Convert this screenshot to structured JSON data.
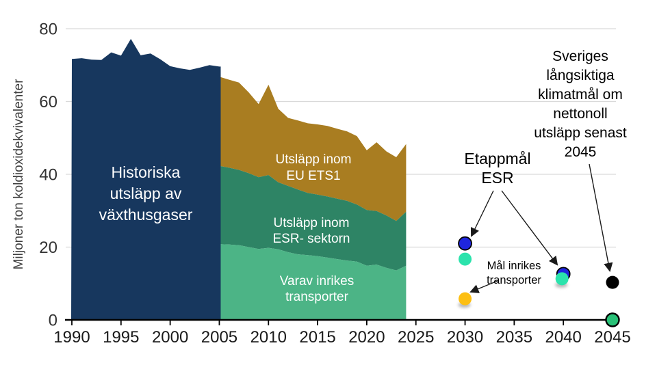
{
  "page": {
    "background": "#ffffff"
  },
  "chart_data": {
    "type": "area+scatter",
    "ylabel": "Miljoner ton koldioxidekvivalenter",
    "ylim": [
      0,
      80
    ],
    "y_ticks": [
      0,
      20,
      40,
      60,
      80
    ],
    "x_ticks": [
      1990,
      1995,
      2000,
      2005,
      2010,
      2015,
      2020,
      2025,
      2030,
      2035,
      2040,
      2045
    ],
    "grid": "horizontal",
    "colors": {
      "historical": "#17375e",
      "eu_ets1": "#a97d21",
      "esr": "#2e8465",
      "transport": "#4cb486",
      "gridline": "#d9d9d9",
      "axis": "#000000",
      "dot_blue": "#1f25dd",
      "dot_teal": "#2be3ac",
      "dot_yellow": "#fdbf12",
      "dot_black": "#000000",
      "dot_green": "#29c177"
    },
    "historical": {
      "years": [
        1990,
        1991,
        1992,
        1993,
        1994,
        1995,
        1996,
        1997,
        1998,
        1999,
        2000,
        2001,
        2002,
        2003,
        2004,
        2005
      ],
      "values": [
        71.7,
        71.9,
        71.5,
        71.4,
        73.5,
        72.6,
        77.2,
        72.7,
        73.2,
        71.6,
        69.7,
        69.1,
        68.7,
        69.3,
        70.0,
        69.6
      ]
    },
    "stacked": {
      "years": [
        2005,
        2006,
        2007,
        2008,
        2009,
        2010,
        2011,
        2012,
        2013,
        2014,
        2015,
        2016,
        2017,
        2018,
        2019,
        2020,
        2021,
        2022,
        2023,
        2024
      ],
      "total_eu_ets1": [
        66.8,
        66.0,
        65.2,
        62.5,
        59.3,
        64.6,
        58.0,
        55.5,
        54.8,
        54.0,
        53.7,
        53.3,
        52.5,
        51.8,
        50.5,
        46.6,
        48.8,
        46.3,
        44.7,
        48.3
      ],
      "esr": [
        42.3,
        41.8,
        41.2,
        40.3,
        39.2,
        39.8,
        37.8,
        36.8,
        35.8,
        34.9,
        34.4,
        33.9,
        33.3,
        32.7,
        31.7,
        30.2,
        29.9,
        28.7,
        27.2,
        29.7
      ],
      "inrikes_transporter": [
        20.8,
        20.7,
        20.5,
        20.0,
        19.5,
        19.8,
        19.4,
        18.6,
        18.0,
        17.8,
        17.5,
        17.1,
        16.7,
        16.3,
        16.0,
        14.9,
        15.2,
        14.3,
        13.6,
        14.9
      ]
    },
    "area_labels": {
      "historical": [
        "Historiska",
        "utsläpp av",
        "växthusgaser"
      ],
      "eu_ets1": [
        "Utsläpp inom",
        "EU ETS1"
      ],
      "esr": [
        "Utsläpp inom",
        "ESR- sektorn"
      ],
      "transport": [
        "Varav inrikes",
        "transporter"
      ]
    },
    "targets": [
      {
        "name": "etappmal-esr-2030",
        "year": 2030,
        "value": 21.0,
        "color": "#1f25dd",
        "stroke": "#000000",
        "stroke_width": 1.8
      },
      {
        "name": "etappmal-2030-teal",
        "year": 2030,
        "value": 16.7,
        "color": "#2be3ac"
      },
      {
        "name": "mal-inrikes-transporter-2030",
        "year": 2030,
        "value": 5.8,
        "color": "#fdbf12",
        "shadow": true
      },
      {
        "name": "etappmal-esr-2040",
        "year": 2040,
        "value": 12.6,
        "color": "#1f25dd",
        "stroke": "#000000",
        "stroke_width": 1.8
      },
      {
        "name": "etappmal-2040-teal",
        "year": 2040,
        "value": 11.3,
        "color": "#2be3ac",
        "dx": -2,
        "shadow": true
      },
      {
        "name": "langsiktigt-klimatmal-2045",
        "year": 2045,
        "value": 10.3,
        "color": "#000000"
      },
      {
        "name": "nettonoll-2045",
        "year": 2045,
        "value": 0,
        "color": "#29c177",
        "stroke": "#000000",
        "stroke_width": 2.4
      }
    ],
    "annotations": {
      "etappmal_esr": [
        "Etappmål",
        "ESR"
      ],
      "mal_inrikes_transporter": [
        "Mål inrikes",
        "transporter"
      ],
      "langsiktiga_klimatmal": [
        "Sveriges",
        "långsiktiga",
        "klimatmål om",
        "nettonoll",
        "utsläpp senast",
        "2045"
      ]
    }
  }
}
